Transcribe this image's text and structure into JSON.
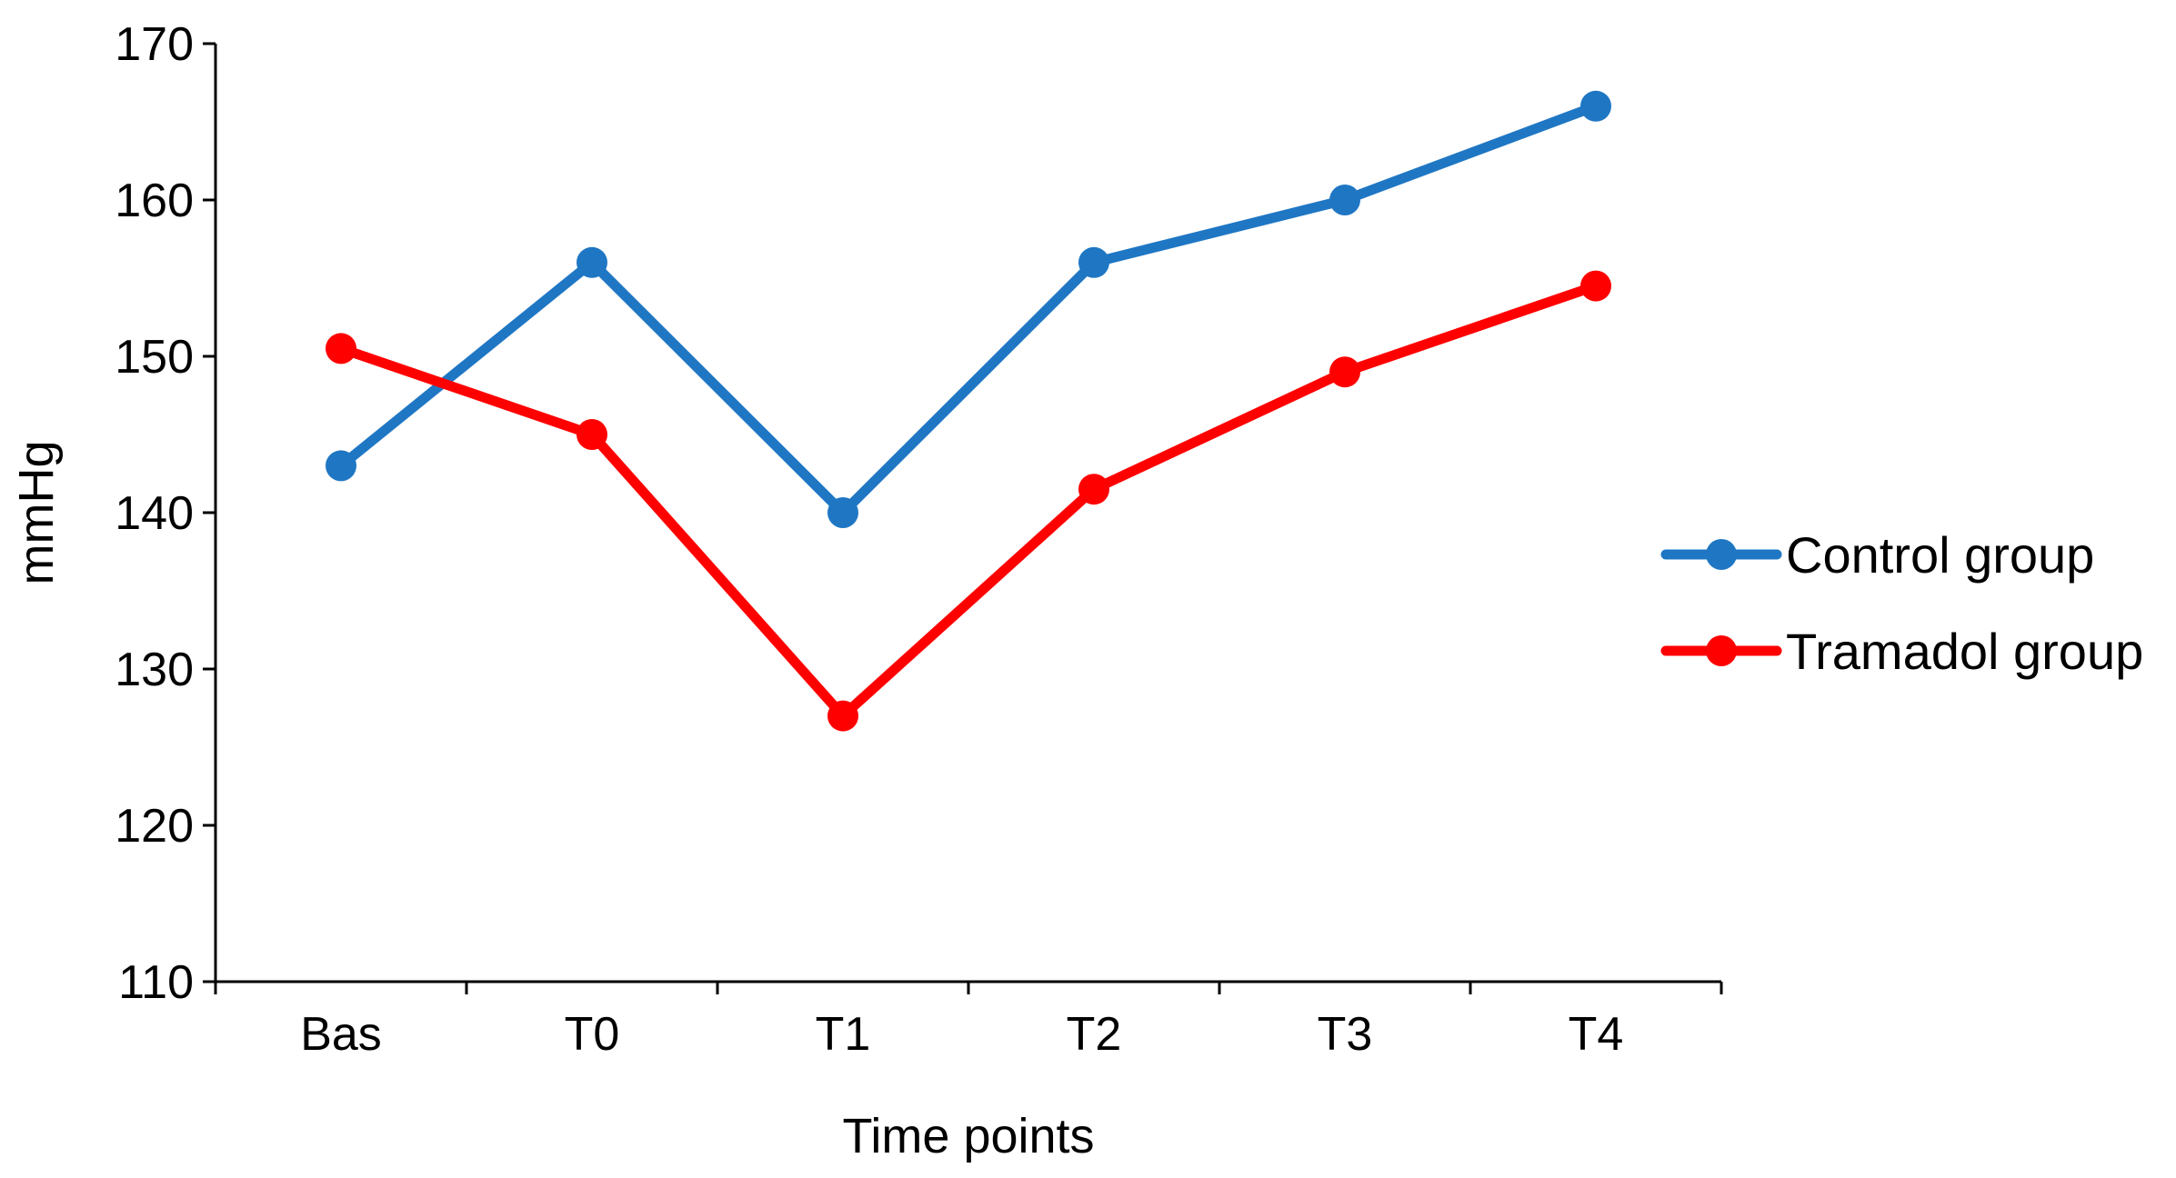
{
  "chart_data": {
    "type": "line",
    "title": "",
    "xlabel": "Time points",
    "ylabel": "mmHg",
    "categories": [
      "Bas",
      "T0",
      "T1",
      "T2",
      "T3",
      "T4"
    ],
    "ylim": [
      110,
      170
    ],
    "yticks": [
      110,
      120,
      130,
      140,
      150,
      160,
      170
    ],
    "grid": false,
    "legend_position": "right",
    "series": [
      {
        "name": "Control group",
        "color": "#1f77c4",
        "values": [
          143,
          156,
          140,
          156,
          160,
          166
        ]
      },
      {
        "name": "Tramadol group",
        "color": "#ff0000",
        "values": [
          150.5,
          145,
          127,
          141.5,
          149,
          154.5
        ]
      }
    ]
  }
}
